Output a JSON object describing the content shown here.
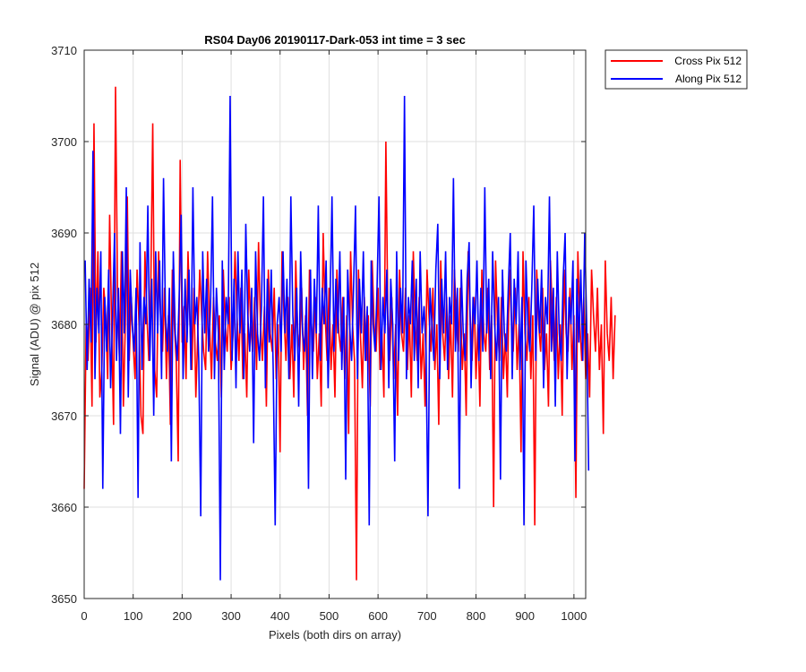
{
  "chart_data": {
    "type": "line",
    "title": "RS04 Day06 20190117-Dark-053 int time = 3 sec",
    "xlabel": "Pixels (both dirs on array)",
    "ylabel": "Signal (ADU) @ pix 512",
    "xlim": [
      0,
      1024
    ],
    "ylim": [
      3650,
      3710
    ],
    "xticks": [
      0,
      100,
      200,
      300,
      400,
      500,
      600,
      700,
      800,
      900,
      1000
    ],
    "yticks": [
      3650,
      3660,
      3670,
      3680,
      3690,
      3700,
      3710
    ],
    "grid": true,
    "legend_position": "outside-top-right",
    "colors": {
      "cross": "#ff0000",
      "along": "#0000ff",
      "axes": "#262626",
      "grid": "#dfdfdf"
    },
    "series": [
      {
        "name": "Cross Pix 512",
        "color": "#ff0000",
        "x_start": 0,
        "x_step": 4,
        "values": [
          3662,
          3680,
          3676,
          3684,
          3671,
          3702,
          3678,
          3688,
          3672,
          3675,
          3684,
          3681,
          3674,
          3692,
          3680,
          3669,
          3706,
          3684,
          3676,
          3688,
          3671,
          3680,
          3694,
          3676,
          3683,
          3678,
          3674,
          3686,
          3680,
          3670,
          3668,
          3688,
          3681,
          3676,
          3684,
          3702,
          3675,
          3672,
          3688,
          3681,
          3677,
          3684,
          3674,
          3681,
          3669,
          3686,
          3680,
          3676,
          3665,
          3698,
          3678,
          3682,
          3674,
          3688,
          3680,
          3675,
          3684,
          3672,
          3679,
          3686,
          3681,
          3677,
          3675,
          3688,
          3680,
          3674,
          3683,
          3678,
          3676,
          3681,
          3672,
          3686,
          3680,
          3677,
          3683,
          3675,
          3679,
          3688,
          3681,
          3676,
          3684,
          3674,
          3679,
          3672,
          3686,
          3680,
          3677,
          3683,
          3675,
          3689,
          3680,
          3676,
          3682,
          3671,
          3686,
          3679,
          3677,
          3684,
          3674,
          3680,
          3666,
          3688,
          3681,
          3676,
          3683,
          3674,
          3680,
          3672,
          3687,
          3679,
          3677,
          3684,
          3675,
          3681,
          3670,
          3686,
          3680,
          3677,
          3683,
          3674,
          3679,
          3671,
          3690,
          3681,
          3676,
          3684,
          3675,
          3680,
          3672,
          3686,
          3679,
          3677,
          3683,
          3674,
          3681,
          3668,
          3688,
          3680,
          3676,
          3652,
          3686,
          3679,
          3673,
          3683,
          3676,
          3681,
          3671,
          3687,
          3680,
          3677,
          3684,
          3675,
          3679,
          3672,
          3700,
          3681,
          3676,
          3683,
          3674,
          3680,
          3670,
          3686,
          3679,
          3677,
          3684,
          3675,
          3681,
          3672,
          3688,
          3680,
          3676,
          3683,
          3674,
          3679,
          3671,
          3686,
          3681,
          3677,
          3684,
          3675,
          3680,
          3669,
          3687,
          3679,
          3676,
          3683,
          3674,
          3681,
          3672,
          3686,
          3680,
          3677,
          3684,
          3675,
          3679,
          3670,
          3688,
          3681,
          3676,
          3683,
          3674,
          3680,
          3671,
          3686,
          3679,
          3677,
          3684,
          3675,
          3681,
          3660,
          3687,
          3680,
          3676,
          3683,
          3674,
          3679,
          3672,
          3686,
          3681,
          3677,
          3684,
          3675,
          3680,
          3666,
          3688,
          3679,
          3676,
          3683,
          3674,
          3681,
          3658,
          3686,
          3680,
          3677,
          3684,
          3675,
          3679,
          3671,
          3687,
          3681,
          3676,
          3683,
          3674,
          3680,
          3670,
          3686,
          3679,
          3677,
          3684,
          3675,
          3681,
          3661,
          3688,
          3680,
          3676,
          3683,
          3674,
          3679,
          3672,
          3686,
          3681,
          3677,
          3684,
          3675,
          3680,
          3668,
          3687,
          3679,
          3676,
          3683,
          3674,
          3681
        ]
      },
      {
        "name": "Along Pix 512",
        "color": "#0000ff",
        "x_start": 2,
        "x_step": 4,
        "values": [
          3687,
          3675,
          3685,
          3678,
          3699,
          3674,
          3684,
          3679,
          3688,
          3662,
          3683,
          3677,
          3686,
          3673,
          3681,
          3690,
          3676,
          3684,
          3668,
          3688,
          3679,
          3695,
          3672,
          3686,
          3680,
          3677,
          3684,
          3661,
          3689,
          3675,
          3683,
          3680,
          3693,
          3676,
          3685,
          3670,
          3688,
          3679,
          3687,
          3674,
          3696,
          3681,
          3677,
          3684,
          3665,
          3688,
          3679,
          3676,
          3683,
          3692,
          3674,
          3685,
          3678,
          3686,
          3675,
          3695,
          3680,
          3683,
          3676,
          3659,
          3688,
          3679,
          3685,
          3677,
          3682,
          3694,
          3674,
          3684,
          3679,
          3652,
          3687,
          3675,
          3683,
          3680,
          3705,
          3676,
          3685,
          3673,
          3688,
          3679,
          3686,
          3674,
          3691,
          3681,
          3677,
          3684,
          3667,
          3688,
          3679,
          3676,
          3682,
          3694,
          3673,
          3685,
          3678,
          3686,
          3675,
          3658,
          3680,
          3683,
          3677,
          3688,
          3679,
          3685,
          3674,
          3694,
          3681,
          3676,
          3684,
          3671,
          3688,
          3679,
          3677,
          3683,
          3662,
          3686,
          3674,
          3685,
          3679,
          3693,
          3676,
          3684,
          3680,
          3687,
          3673,
          3682,
          3694,
          3677,
          3685,
          3679,
          3688,
          3675,
          3683,
          3663,
          3686,
          3680,
          3676,
          3684,
          3693,
          3674,
          3685,
          3679,
          3688,
          3676,
          3682,
          3658,
          3687,
          3680,
          3677,
          3684,
          3694,
          3675,
          3683,
          3679,
          3686,
          3673,
          3685,
          3680,
          3665,
          3688,
          3676,
          3684,
          3679,
          3705,
          3674,
          3683,
          3680,
          3687,
          3676,
          3685,
          3673,
          3688,
          3679,
          3682,
          3677,
          3659,
          3684,
          3680,
          3676,
          3686,
          3691,
          3674,
          3685,
          3679,
          3688,
          3675,
          3683,
          3680,
          3696,
          3677,
          3684,
          3662,
          3686,
          3679,
          3676,
          3685,
          3689,
          3673,
          3683,
          3680,
          3687,
          3676,
          3684,
          3677,
          3695,
          3679,
          3685,
          3674,
          3688,
          3680,
          3676,
          3683,
          3663,
          3686,
          3679,
          3677,
          3684,
          3690,
          3674,
          3685,
          3680,
          3688,
          3675,
          3683,
          3658,
          3687,
          3680,
          3677,
          3684,
          3693,
          3676,
          3685,
          3679,
          3686,
          3673,
          3683,
          3680,
          3694,
          3677,
          3684,
          3671,
          3688,
          3679,
          3676,
          3685,
          3690,
          3674,
          3683,
          3680,
          3687,
          3665,
          3685,
          3678,
          3686,
          3676,
          3690,
          3680,
          3664
        ]
      }
    ]
  }
}
